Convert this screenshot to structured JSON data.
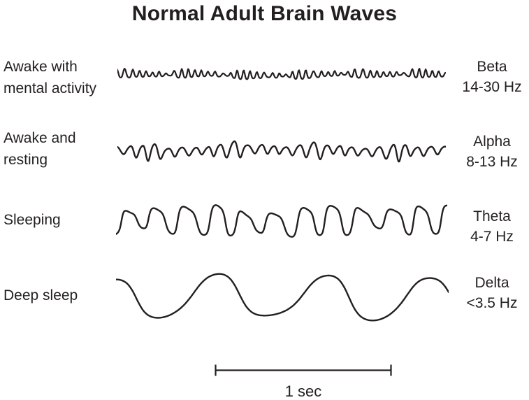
{
  "title": "Normal Adult Brain Waves",
  "colors": {
    "ink": "#231f20",
    "background": "#ffffff"
  },
  "rows": [
    {
      "state": "Awake with\nmental activity",
      "band": "Beta",
      "range": "14-30 Hz",
      "wave": {
        "cycles": 47,
        "amplitude": 7,
        "amp_jitter": 0.55,
        "freq_jitter": 0.25,
        "harmonic": 0.2,
        "clip": 0,
        "drift": 2,
        "noise_scale": 7,
        "seed": 13
      }
    },
    {
      "state": "Awake and\nresting",
      "band": "Alpha",
      "range": "8-13 Hz",
      "wave": {
        "cycles": 25,
        "amplitude": 11.5,
        "amp_jitter": 0.5,
        "freq_jitter": 0.2,
        "harmonic": 0.15,
        "clip": 0,
        "drift": 3,
        "noise_scale": 5,
        "seed": 41
      }
    },
    {
      "state": "Sleeping",
      "band": "Theta",
      "range": "4-7 Hz",
      "wave": {
        "cycles": 11.3,
        "amplitude": 23,
        "amp_jitter": 0.35,
        "freq_jitter": 0.22,
        "harmonic": 0.25,
        "clip": 1.6,
        "drift": 5,
        "noise_scale": 3.5,
        "seed": 7
      }
    },
    {
      "state": "Deep sleep",
      "band": "Delta",
      "range": "<3.5 Hz",
      "wave": {
        "cycles": 3.15,
        "amplitude": 33,
        "amp_jitter": 0.15,
        "freq_jitter": 0.12,
        "harmonic": 0.15,
        "clip": 1.2,
        "drift": 5,
        "noise_scale": 1.2,
        "seed": 9
      }
    }
  ],
  "scale_bar": {
    "label": "1 sec"
  }
}
